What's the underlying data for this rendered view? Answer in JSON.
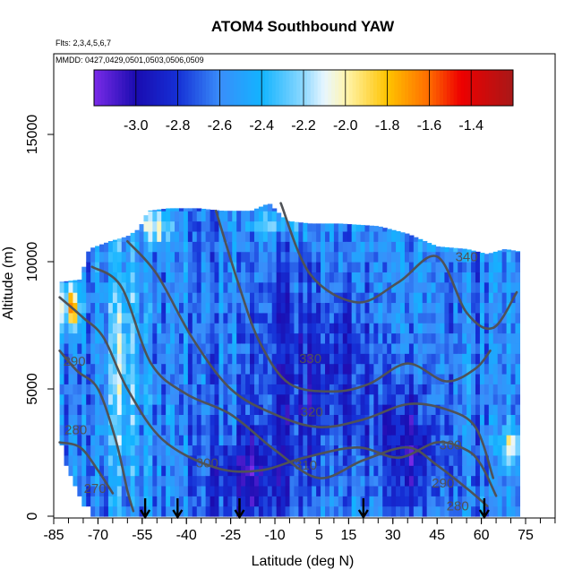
{
  "chart_data": {
    "type": "heatmap",
    "title": "ATOM4 Southbound YAW",
    "flights_label": "Flts: 2,3,4,5,6,7",
    "dates_label": "MMDD: 0427,0429,0501,0503,0506,0509",
    "xlabel": "Latitude (deg N)",
    "ylabel": "Altitude (m)",
    "xlim": [
      -85,
      85
    ],
    "ylim": [
      0,
      17500
    ],
    "x_ticks": [
      -85,
      -70,
      -55,
      -40,
      -25,
      -10,
      5,
      15,
      30,
      45,
      60,
      75
    ],
    "x_tick_labels": [
      "-85",
      "-70",
      "-55",
      "-40",
      "-25",
      "-10",
      "5",
      "15",
      "30",
      "45",
      "60",
      "75"
    ],
    "y_ticks": [
      0,
      5000,
      10000,
      15000
    ],
    "y_tick_labels": [
      "0",
      "5000",
      "10000",
      "15000"
    ],
    "colorbar": {
      "range": [
        -3.2,
        -1.2
      ],
      "ticks": [
        -3.0,
        -2.8,
        -2.6,
        -2.4,
        -2.2,
        -2.0,
        -1.8,
        -1.6,
        -1.4
      ],
      "tick_labels": [
        "-3.0",
        "-2.8",
        "-2.6",
        "-2.4",
        "-2.2",
        "-2.0",
        "-1.8",
        "-1.6",
        "-1.4"
      ],
      "stops": [
        {
          "v": -3.2,
          "color": "#7a2be8"
        },
        {
          "v": -3.0,
          "color": "#1a0cb0"
        },
        {
          "v": -2.8,
          "color": "#1530d6"
        },
        {
          "v": -2.6,
          "color": "#3a8dfa"
        },
        {
          "v": -2.4,
          "color": "#12b4ff"
        },
        {
          "v": -2.2,
          "color": "#8ed8ff"
        },
        {
          "v": -2.1,
          "color": "#e8f6ff"
        },
        {
          "v": -2.0,
          "color": "#fff5b0"
        },
        {
          "v": -1.8,
          "color": "#ffc400"
        },
        {
          "v": -1.6,
          "color": "#ff6a00"
        },
        {
          "v": -1.45,
          "color": "#ee0000"
        },
        {
          "v": -1.2,
          "color": "#a81818"
        }
      ]
    },
    "data_coverage": {
      "lat_range": [
        -83,
        73
      ],
      "top_altitude_m": [
        [
          -83,
          9200
        ],
        [
          -76,
          9300
        ],
        [
          -73,
          10500
        ],
        [
          -66,
          10800
        ],
        [
          -60,
          11000
        ],
        [
          -56,
          11300
        ],
        [
          -53,
          12000
        ],
        [
          -46,
          12100
        ],
        [
          -36,
          12100
        ],
        [
          -28,
          12000
        ],
        [
          -18,
          12000
        ],
        [
          -12,
          12300
        ],
        [
          -6,
          11600
        ],
        [
          2,
          11500
        ],
        [
          12,
          11500
        ],
        [
          25,
          11400
        ],
        [
          35,
          11100
        ],
        [
          45,
          10600
        ],
        [
          55,
          10500
        ],
        [
          62,
          10300
        ],
        [
          68,
          10500
        ],
        [
          73,
          10400
        ]
      ],
      "low_edge_altitude_m": [
        [
          -83,
          3000
        ],
        [
          -79,
          1500
        ],
        [
          -76,
          700
        ],
        [
          -72,
          100
        ],
        [
          -68,
          0
        ],
        [
          73,
          0
        ]
      ]
    },
    "field_model": {
      "base": -2.62,
      "features": [
        {
          "lat": 8,
          "alt": 5500,
          "amp": -0.3,
          "width_lat": 22,
          "width_alt": 4000
        },
        {
          "lat": 35,
          "alt": 2500,
          "amp": -0.4,
          "width_lat": 10,
          "width_alt": 2500
        },
        {
          "lat": -20,
          "alt": 1500,
          "amp": -0.35,
          "width_lat": 12,
          "width_alt": 1800
        },
        {
          "lat": -62,
          "alt": 6000,
          "amp": 0.4,
          "width_lat": 6,
          "width_alt": 5000
        },
        {
          "lat": -79,
          "alt": 8200,
          "amp": 0.75,
          "width_lat": 4,
          "width_alt": 900
        },
        {
          "lat": -50,
          "alt": 11400,
          "amp": 0.55,
          "width_lat": 5,
          "width_alt": 600
        },
        {
          "lat": 70,
          "alt": 2800,
          "amp": 0.6,
          "width_lat": 3,
          "width_alt": 700
        },
        {
          "lat": -10,
          "alt": 11500,
          "amp": 0.3,
          "width_lat": 10,
          "width_alt": 600
        },
        {
          "lat": 50,
          "alt": 11000,
          "amp": 0.3,
          "width_lat": 8,
          "width_alt": 500
        }
      ]
    },
    "contour_lines": [
      {
        "level": 280,
        "points": [
          [
            -83,
            2900
          ],
          [
            -76,
            2700
          ],
          [
            -70,
            1800
          ],
          [
            -65,
            900
          ]
        ]
      },
      {
        "level": 290,
        "points": [
          [
            -83,
            6500
          ],
          [
            -77,
            5700
          ],
          [
            -70,
            5000
          ],
          [
            -64,
            3000
          ],
          [
            -60,
            1000
          ],
          [
            -58,
            200
          ]
        ]
      },
      {
        "level": 300,
        "points": [
          [
            -83,
            8600
          ],
          [
            -75,
            7800
          ],
          [
            -68,
            7000
          ],
          [
            -60,
            5000
          ],
          [
            -48,
            3000
          ],
          [
            -30,
            1900
          ],
          [
            -15,
            1800
          ],
          [
            0,
            2300
          ],
          [
            18,
            2700
          ],
          [
            32,
            2300
          ],
          [
            45,
            2900
          ],
          [
            55,
            2600
          ],
          [
            60,
            2000
          ],
          [
            65,
            800
          ]
        ]
      },
      {
        "level": 310,
        "points": [
          [
            -72,
            9800
          ],
          [
            -62,
            9000
          ],
          [
            -52,
            6000
          ],
          [
            -40,
            4800
          ],
          [
            -25,
            4000
          ],
          [
            -10,
            2600
          ],
          [
            5,
            1500
          ],
          [
            20,
            2200
          ],
          [
            35,
            2700
          ],
          [
            45,
            2000
          ],
          [
            55,
            1100
          ],
          [
            62,
            400
          ]
        ]
      },
      {
        "level": 320,
        "points": [
          [
            -60,
            10800
          ],
          [
            -50,
            9500
          ],
          [
            -38,
            7000
          ],
          [
            -25,
            5000
          ],
          [
            -10,
            4000
          ],
          [
            5,
            3500
          ],
          [
            20,
            3800
          ],
          [
            35,
            4400
          ],
          [
            48,
            4200
          ],
          [
            58,
            3500
          ],
          [
            64,
            1500
          ]
        ]
      },
      {
        "level": 330,
        "points": [
          [
            -30,
            12000
          ],
          [
            -22,
            9000
          ],
          [
            -15,
            6800
          ],
          [
            -5,
            5200
          ],
          [
            10,
            4900
          ],
          [
            22,
            5200
          ],
          [
            35,
            6000
          ],
          [
            48,
            5300
          ],
          [
            58,
            5800
          ],
          [
            63,
            6500
          ]
        ]
      },
      {
        "level": 340,
        "points": [
          [
            -8,
            12300
          ],
          [
            2,
            9500
          ],
          [
            18,
            8400
          ],
          [
            32,
            9200
          ],
          [
            45,
            10200
          ],
          [
            55,
            8000
          ],
          [
            64,
            7400
          ],
          [
            72,
            8800
          ]
        ]
      }
    ],
    "contour_labels": [
      {
        "text": "280",
        "lat": -77.5,
        "alt": 3400
      },
      {
        "text": "290",
        "lat": -78,
        "alt": 6100
      },
      {
        "text": "300",
        "lat": -33,
        "alt": 2100
      },
      {
        "text": "310",
        "lat": 0.5,
        "alt": 2000
      },
      {
        "text": "320",
        "lat": 2.5,
        "alt": 4100
      },
      {
        "text": "330",
        "lat": 2,
        "alt": 6200
      },
      {
        "text": "340",
        "lat": 55,
        "alt": 10200
      },
      {
        "text": "300",
        "lat": 49.5,
        "alt": 2800
      },
      {
        "text": "290",
        "lat": 47,
        "alt": 1300
      },
      {
        "text": "280",
        "lat": 52,
        "alt": 400
      },
      {
        "text": "270",
        "lat": -71,
        "alt": 1100
      }
    ],
    "arrow_latitudes": [
      -54,
      -43,
      -22,
      20,
      61
    ]
  }
}
